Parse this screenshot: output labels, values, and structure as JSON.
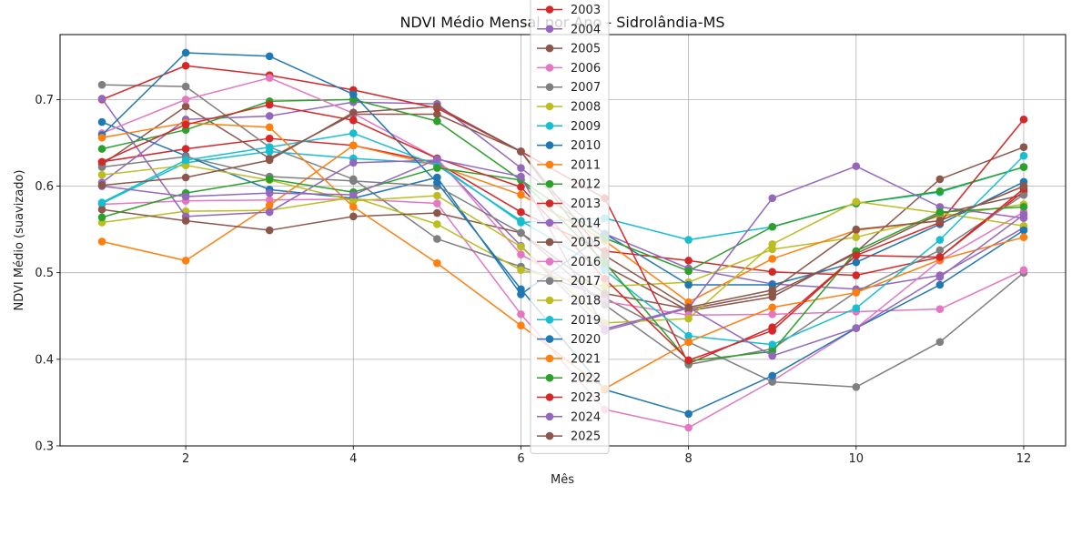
{
  "chart_data": {
    "type": "line",
    "title": "NDVI Médio Mensal por Ano - Sidrolândia-MS",
    "xlabel": "Mês",
    "ylabel": "NDVI Médio (suavizado)",
    "xlim": [
      0.5,
      12.5
    ],
    "ylim": [
      0.3,
      0.775
    ],
    "xticks": [
      2,
      4,
      6,
      8,
      10,
      12
    ],
    "yticks": [
      0.3,
      0.4,
      0.5,
      0.6,
      0.7
    ],
    "ytick_labels": [
      "0.3",
      "0.4",
      "0.5",
      "0.6",
      "0.7"
    ],
    "grid": true,
    "legend_placement": "top-center",
    "x": [
      1,
      2,
      3,
      4,
      5,
      6,
      7,
      8,
      9,
      10,
      11,
      12
    ],
    "series": [
      {
        "name": "2003",
        "color": "#d62728",
        "values": [
          0.628,
          0.643,
          0.655,
          0.647,
          0.627,
          0.57,
          0.525,
          0.514,
          0.501,
          0.497,
          0.518,
          0.594
        ]
      },
      {
        "name": "2004",
        "color": "#9467bd",
        "values": [
          0.604,
          0.677,
          0.681,
          0.697,
          0.695,
          0.621,
          0.545,
          0.505,
          0.487,
          0.481,
          0.497,
          0.552
        ]
      },
      {
        "name": "2005",
        "color": "#8c564b",
        "values": [
          0.625,
          0.692,
          0.632,
          0.683,
          0.683,
          0.64,
          0.508,
          0.456,
          0.472,
          0.524,
          0.608,
          0.645
        ]
      },
      {
        "name": "2006",
        "color": "#e377c2",
        "values": [
          0.579,
          0.583,
          0.584,
          0.585,
          0.58,
          0.452,
          0.342,
          0.321,
          0.375,
          0.436,
          0.514,
          0.57
        ]
      },
      {
        "name": "2007",
        "color": "#7f7f7f",
        "values": [
          0.717,
          0.715,
          0.645,
          0.608,
          0.539,
          0.507,
          0.471,
          0.42,
          0.374,
          0.368,
          0.42,
          0.5
        ]
      },
      {
        "name": "2008",
        "color": "#bcbd22",
        "values": [
          0.558,
          0.571,
          0.572,
          0.587,
          0.556,
          0.503,
          0.484,
          0.489,
          0.527,
          0.541,
          0.565,
          0.579
        ]
      },
      {
        "name": "2009",
        "color": "#17becf",
        "values": [
          0.58,
          0.627,
          0.64,
          0.632,
          0.626,
          0.558,
          0.563,
          0.538,
          0.553,
          0.58,
          0.593,
          0.622
        ]
      },
      {
        "name": "2010",
        "color": "#1f77b4",
        "values": [
          0.674,
          0.635,
          0.596,
          0.586,
          0.61,
          0.475,
          0.545,
          0.486,
          0.486,
          0.512,
          0.556,
          0.605
        ]
      },
      {
        "name": "2011",
        "color": "#ff7f0e",
        "values": [
          0.536,
          0.514,
          0.578,
          0.647,
          0.624,
          0.59,
          0.537,
          0.466,
          0.516,
          0.549,
          0.56,
          0.6
        ]
      },
      {
        "name": "2012",
        "color": "#2ca02c",
        "values": [
          0.643,
          0.665,
          0.698,
          0.7,
          0.675,
          0.607,
          0.54,
          0.502,
          0.553,
          0.58,
          0.594,
          0.622
        ]
      },
      {
        "name": "2013",
        "color": "#d62728",
        "values": [
          0.7,
          0.739,
          0.728,
          0.711,
          0.69,
          0.64,
          0.586,
          0.395,
          0.437,
          0.52,
          0.558,
          0.677
        ]
      },
      {
        "name": "2014",
        "color": "#9467bd",
        "values": [
          0.701,
          0.565,
          0.57,
          0.627,
          0.63,
          0.531,
          0.433,
          0.459,
          0.586,
          0.623,
          0.576,
          0.563
        ]
      },
      {
        "name": "2015",
        "color": "#8c564b",
        "values": [
          0.573,
          0.56,
          0.549,
          0.565,
          0.569,
          0.546,
          0.476,
          0.458,
          0.476,
          0.522,
          0.568,
          0.59
        ]
      },
      {
        "name": "2016",
        "color": "#e377c2",
        "values": [
          0.661,
          0.7,
          0.725,
          0.684,
          0.632,
          0.521,
          0.467,
          0.451,
          0.452,
          0.455,
          0.458,
          0.503
        ]
      },
      {
        "name": "2017",
        "color": "#7f7f7f",
        "values": [
          0.622,
          0.634,
          0.611,
          0.606,
          0.6,
          0.546,
          0.463,
          0.394,
          0.412,
          0.478,
          0.526,
          0.59
        ]
      },
      {
        "name": "2018",
        "color": "#bcbd22",
        "values": [
          0.613,
          0.624,
          0.607,
          0.583,
          0.589,
          0.53,
          0.442,
          0.447,
          0.533,
          0.582,
          0.569,
          0.554
        ]
      },
      {
        "name": "2019",
        "color": "#17becf",
        "values": [
          0.581,
          0.63,
          0.645,
          0.661,
          0.624,
          0.56,
          0.503,
          0.427,
          0.417,
          0.459,
          0.538,
          0.635
        ]
      },
      {
        "name": "2020",
        "color": "#1f77b4",
        "values": [
          0.659,
          0.754,
          0.75,
          0.706,
          0.604,
          0.481,
          0.365,
          0.337,
          0.381,
          0.436,
          0.486,
          0.549
        ]
      },
      {
        "name": "2021",
        "color": "#ff7f0e",
        "values": [
          0.656,
          0.673,
          0.668,
          0.576,
          0.511,
          0.439,
          0.366,
          0.42,
          0.46,
          0.477,
          0.515,
          0.541
        ]
      },
      {
        "name": "2022",
        "color": "#2ca02c",
        "values": [
          0.564,
          0.592,
          0.608,
          0.593,
          0.621,
          0.607,
          0.512,
          0.398,
          0.409,
          0.525,
          0.57,
          0.576
        ]
      },
      {
        "name": "2023",
        "color": "#d62728",
        "values": [
          0.628,
          0.671,
          0.694,
          0.676,
          0.632,
          0.599,
          0.493,
          0.399,
          0.433,
          0.52,
          0.518,
          0.597
        ]
      },
      {
        "name": "2024",
        "color": "#9467bd",
        "values": [
          0.6,
          0.588,
          0.592,
          0.59,
          0.631,
          0.611,
          0.435,
          0.46,
          0.404,
          0.436,
          0.495,
          0.567
        ]
      },
      {
        "name": "2025",
        "color": "#8c564b",
        "values": [
          0.601,
          0.61,
          0.63,
          0.685,
          0.692,
          0.64,
          0.52,
          0.46,
          0.48,
          0.55,
          0.56,
          0.6
        ]
      }
    ]
  }
}
